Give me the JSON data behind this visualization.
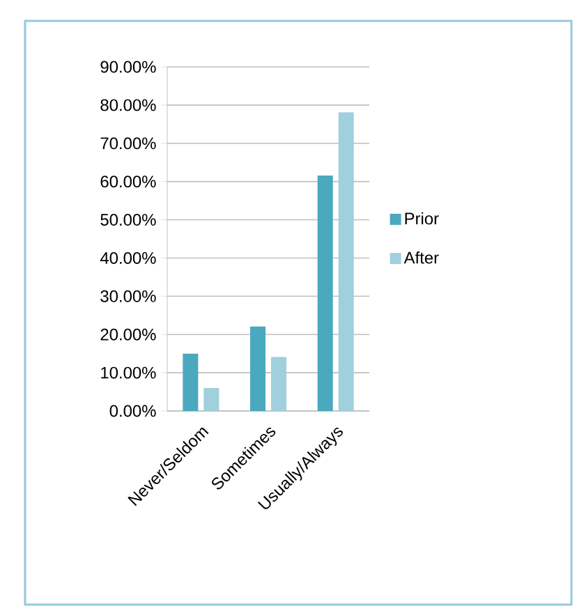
{
  "chart_data": {
    "type": "bar",
    "categories": [
      "Never/Seldom",
      "Sometimes",
      "Usually/Always"
    ],
    "series": [
      {
        "name": "Prior",
        "color": "#4aa8bf",
        "values": [
          15.0,
          22.1,
          61.6
        ]
      },
      {
        "name": "After",
        "color": "#a0cfdd",
        "values": [
          6.0,
          14.1,
          78.1
        ]
      }
    ],
    "ylim": [
      0,
      90
    ],
    "yticks": [
      {
        "value": 0,
        "label": "0.00%"
      },
      {
        "value": 10,
        "label": "10.00%"
      },
      {
        "value": 20,
        "label": "20.00%"
      },
      {
        "value": 30,
        "label": "30.00%"
      },
      {
        "value": 40,
        "label": "40.00%"
      },
      {
        "value": 50,
        "label": "50.00%"
      },
      {
        "value": 60,
        "label": "60.00%"
      },
      {
        "value": 70,
        "label": "70.00%"
      },
      {
        "value": 80,
        "label": "80.00%"
      },
      {
        "value": 90,
        "label": "90.00%"
      }
    ],
    "grid": "y",
    "legend": "right"
  }
}
